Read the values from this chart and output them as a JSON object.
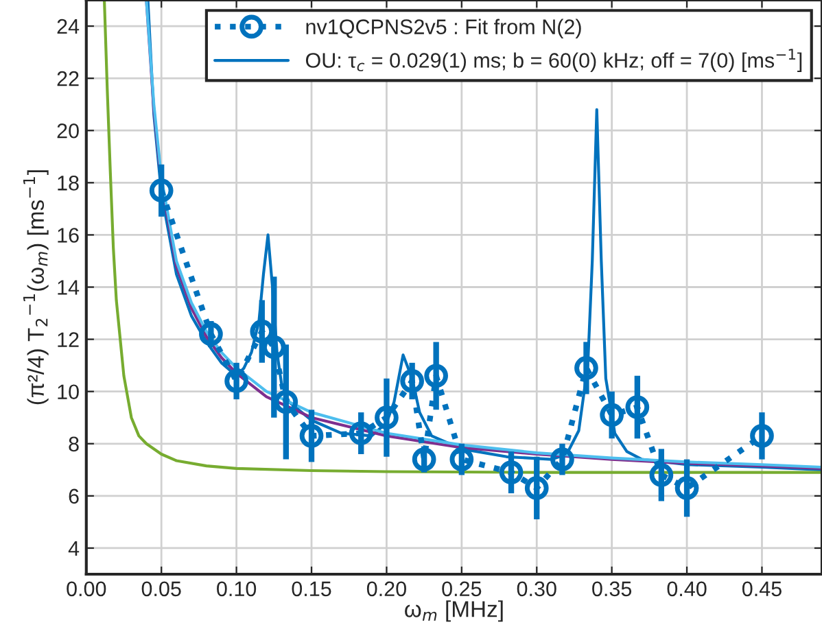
{
  "chart_data": {
    "type": "line",
    "xlabel": "ω$_{m}$ [MHz]",
    "ylabel": "(π²/4) T$_{2}$$^{−1}$(ω$_{m}$) [ms$^{−1}$]",
    "xlim": [
      0,
      0.49
    ],
    "ylim": [
      3,
      25
    ],
    "xticks": [
      {
        "value": 0,
        "label": "0.00"
      },
      {
        "value": 0.05,
        "label": "0.05"
      },
      {
        "value": 0.1,
        "label": "0.10"
      },
      {
        "value": 0.15,
        "label": "0.15"
      },
      {
        "value": 0.2,
        "label": "0.20"
      },
      {
        "value": 0.25,
        "label": "0.25"
      },
      {
        "value": 0.3,
        "label": "0.30"
      },
      {
        "value": 0.35,
        "label": "0.35"
      },
      {
        "value": 0.4,
        "label": "0.40"
      },
      {
        "value": 0.45,
        "label": "0.45"
      }
    ],
    "yticks": [
      4,
      6,
      8,
      10,
      12,
      14,
      16,
      18,
      20,
      22,
      24
    ],
    "grid": true,
    "legend": "top right",
    "series": [
      {
        "name": "nv1QCPNS2v5 : Fit from N(2)",
        "color": "#0072bd",
        "marker": "circle",
        "line_style": "dotted",
        "x": [
          0.05,
          0.083,
          0.1,
          0.117,
          0.125,
          0.133,
          0.15,
          0.183,
          0.2,
          0.217,
          0.225,
          0.233,
          0.25,
          0.283,
          0.3,
          0.317,
          0.333,
          0.35,
          0.367,
          0.383,
          0.4,
          0.45
        ],
        "values": [
          17.7,
          12.2,
          10.4,
          12.3,
          11.7,
          9.6,
          8.3,
          8.4,
          9.0,
          10.4,
          7.4,
          10.6,
          7.4,
          6.9,
          6.3,
          7.4,
          10.9,
          9.1,
          9.4,
          6.8,
          6.3,
          8.3
        ],
        "errors": [
          1.0,
          0.5,
          0.7,
          1.2,
          2.7,
          2.2,
          1.0,
          0.8,
          1.5,
          0.7,
          0.5,
          1.3,
          0.6,
          0.8,
          1.2,
          0.6,
          1.0,
          0.9,
          1.2,
          1.0,
          1.1,
          0.9
        ]
      },
      {
        "name": "OU: τ$_{c}$ = 0.029(1) ms; b = 60(0) kHz; off = 7(0) [ms$^{−1}$]",
        "color": "#0072bd",
        "marker": "none",
        "line_style": "solid",
        "x": [
          0.041,
          0.045,
          0.05,
          0.06,
          0.07,
          0.08,
          0.09,
          0.1,
          0.105,
          0.11,
          0.115,
          0.118,
          0.121,
          0.124,
          0.127,
          0.13,
          0.135,
          0.15,
          0.17,
          0.19,
          0.2,
          0.205,
          0.211,
          0.217,
          0.222,
          0.23,
          0.25,
          0.28,
          0.31,
          0.32,
          0.328,
          0.334,
          0.337,
          0.34,
          0.343,
          0.346,
          0.352,
          0.36,
          0.37,
          0.4,
          0.45,
          0.49
        ],
        "values": [
          25,
          20.6,
          17.6,
          14.5,
          12.9,
          11.9,
          11.1,
          10.6,
          10.9,
          11.5,
          12.7,
          14.5,
          16.0,
          14.0,
          11.5,
          10.3,
          9.6,
          8.9,
          8.4,
          8.3,
          8.8,
          9.6,
          11.4,
          10.5,
          9.2,
          8.3,
          7.8,
          7.5,
          7.4,
          7.6,
          8.5,
          11.0,
          15.0,
          20.8,
          15.0,
          10.5,
          8.4,
          7.7,
          7.4,
          7.2,
          7.1,
          7.0
        ]
      },
      {
        "color": "#7e2f8e",
        "marker": "none",
        "line_style": "solid",
        "x": [
          0.04,
          0.045,
          0.05,
          0.06,
          0.07,
          0.08,
          0.09,
          0.1,
          0.12,
          0.15,
          0.2,
          0.25,
          0.3,
          0.35,
          0.4,
          0.45,
          0.49
        ],
        "values": [
          25,
          20.8,
          18.0,
          14.8,
          13.2,
          12.1,
          11.3,
          10.7,
          9.8,
          9.0,
          8.3,
          7.85,
          7.6,
          7.4,
          7.25,
          7.15,
          7.05
        ]
      },
      {
        "color": "#4dbeee",
        "marker": "none",
        "line_style": "solid",
        "x": [
          0.04,
          0.045,
          0.05,
          0.06,
          0.07,
          0.08,
          0.09,
          0.1,
          0.12,
          0.15,
          0.2,
          0.25,
          0.3,
          0.35,
          0.4,
          0.45,
          0.49
        ],
        "values": [
          25,
          21,
          18.2,
          15.0,
          13.4,
          12.3,
          11.5,
          10.9,
          10.0,
          9.2,
          8.4,
          7.95,
          7.65,
          7.45,
          7.3,
          7.2,
          7.1
        ]
      },
      {
        "color": "#77ac30",
        "marker": "none",
        "line_style": "solid",
        "x": [
          0.012,
          0.014,
          0.016,
          0.018,
          0.02,
          0.025,
          0.03,
          0.035,
          0.04,
          0.05,
          0.06,
          0.08,
          0.1,
          0.15,
          0.2,
          0.3,
          0.4,
          0.49
        ],
        "values": [
          25,
          21.5,
          18.4,
          15.5,
          13.5,
          10.6,
          9.0,
          8.3,
          8.0,
          7.6,
          7.35,
          7.15,
          7.05,
          6.97,
          6.93,
          6.9,
          6.9,
          6.9
        ]
      }
    ]
  }
}
